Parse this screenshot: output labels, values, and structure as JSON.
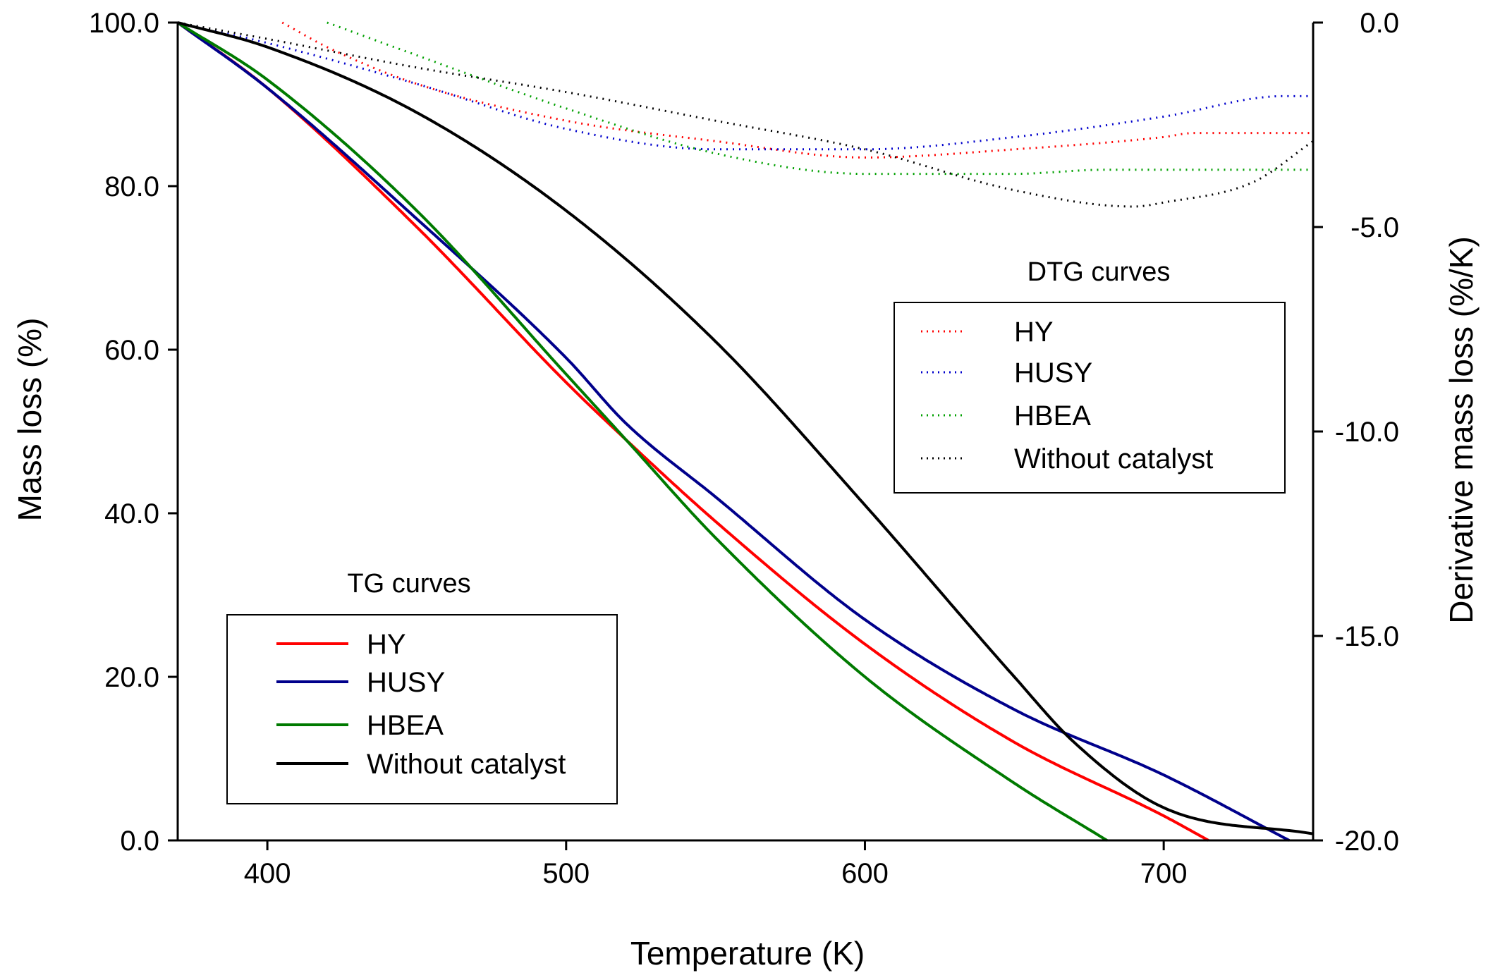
{
  "chart_data": {
    "type": "line",
    "xlabel": "Temperature (K)",
    "ylabel_left": "Mass loss (%)",
    "ylabel_right": "Derivative mass loss (%/K)",
    "xlim": [
      370,
      750
    ],
    "ylim_left": [
      0,
      100
    ],
    "ylim_right": [
      -20,
      0
    ],
    "x_ticks": [
      "400",
      "500",
      "600",
      "700"
    ],
    "y_left_ticks": [
      "0.0",
      "20.0",
      "40.0",
      "60.0",
      "80.0",
      "100.0"
    ],
    "y_right_ticks": [
      "-20.0",
      "-15.0",
      "-10.0",
      "-5.0",
      "0.0"
    ],
    "tg_legend": {
      "title": "TG curves",
      "entries": [
        "HY",
        "HUSY",
        "HBEA",
        "Without catalyst"
      ]
    },
    "dtg_legend": {
      "title": "DTG curves",
      "entries": [
        "HY",
        "HUSY",
        "HBEA",
        "Without catalyst"
      ]
    },
    "tg_series": [
      {
        "name": "HY",
        "color": "#ff0000",
        "x": [
          370,
          400,
          450,
          500,
          520,
          550,
          600,
          650,
          700,
          715
        ],
        "y": [
          100,
          92,
          75,
          56,
          49,
          39,
          24,
          12,
          3,
          0
        ]
      },
      {
        "name": "HUSY",
        "color": "#00008b",
        "x": [
          370,
          400,
          450,
          500,
          520,
          550,
          600,
          650,
          700,
          742
        ],
        "y": [
          100,
          92,
          76,
          59,
          51,
          42,
          27,
          16,
          8,
          0
        ]
      },
      {
        "name": "HBEA",
        "color": "#007a00",
        "x": [
          370,
          400,
          450,
          500,
          520,
          550,
          600,
          650,
          681
        ],
        "y": [
          100,
          93,
          77,
          57,
          49,
          37,
          20,
          7,
          0
        ]
      },
      {
        "name": "Without catalyst",
        "color": "#000000",
        "x": [
          370,
          400,
          450,
          500,
          550,
          600,
          650,
          670,
          700,
          750
        ],
        "y": [
          100,
          97,
          89,
          77,
          61,
          41,
          20,
          12,
          4,
          0.8
        ]
      }
    ],
    "dtg_series": [
      {
        "name": "HY",
        "color": "#ff0000",
        "x": [
          405,
          420,
          450,
          500,
          550,
          600,
          650,
          700,
          710,
          750
        ],
        "y": [
          0,
          -0.6,
          -1.5,
          -2.4,
          -2.9,
          -3.3,
          -3.1,
          -2.8,
          -2.7,
          -2.7
        ]
      },
      {
        "name": "HUSY",
        "color": "#0000cc",
        "x": [
          370,
          400,
          450,
          500,
          550,
          600,
          650,
          700,
          740,
          750
        ],
        "y": [
          0,
          -0.5,
          -1.5,
          -2.6,
          -3.1,
          -3.1,
          -2.8,
          -2.3,
          -1.8,
          -1.8
        ]
      },
      {
        "name": "HBEA",
        "color": "#00a000",
        "x": [
          420,
          450,
          500,
          550,
          600,
          650,
          680,
          700,
          750
        ],
        "y": [
          0,
          -0.8,
          -2.1,
          -3.2,
          -3.7,
          -3.7,
          -3.6,
          -3.6,
          -3.6
        ]
      },
      {
        "name": "Without catalyst",
        "color": "#000000",
        "x": [
          370,
          400,
          450,
          500,
          550,
          600,
          650,
          690,
          700,
          730,
          750
        ],
        "y": [
          0,
          -0.4,
          -1.1,
          -1.7,
          -2.4,
          -3.1,
          -4.1,
          -4.5,
          -4.4,
          -3.9,
          -2.9
        ]
      }
    ]
  }
}
